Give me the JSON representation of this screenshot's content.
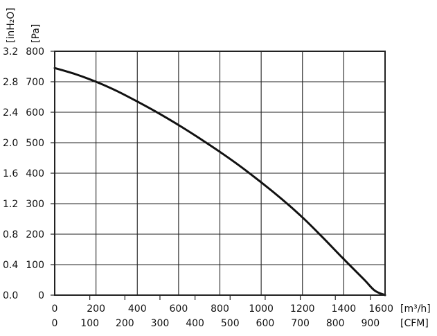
{
  "chart_data": {
    "type": "line",
    "title": "",
    "x_axis_primary": {
      "unit_label": "[m³/h]",
      "range": [
        0,
        1600
      ],
      "ticks": [
        0,
        200,
        400,
        600,
        800,
        1000,
        1200,
        1400,
        1600
      ]
    },
    "x_axis_secondary": {
      "unit_label": "[CFM]",
      "ticks": [
        0,
        100,
        200,
        300,
        400,
        500,
        600,
        700,
        800,
        900
      ]
    },
    "y_axis_primary": {
      "unit_label": "[Pa]",
      "range": [
        0,
        800
      ],
      "ticks": [
        0,
        100,
        200,
        300,
        400,
        500,
        600,
        700,
        800
      ]
    },
    "y_axis_secondary": {
      "unit_label": "[inH₂O]",
      "ticks": [
        "0.0",
        "0.4",
        "0.8",
        "1.2",
        "1.6",
        "2.0",
        "2.4",
        "2.8",
        "3.2"
      ]
    },
    "grid": true,
    "series": [
      {
        "x": [
          0,
          100,
          200,
          300,
          400,
          500,
          600,
          700,
          800,
          900,
          1000,
          1100,
          1200,
          1300,
          1400,
          1500,
          1550,
          1600
        ],
        "y": [
          745,
          725,
          700,
          670,
          635,
          598,
          558,
          515,
          470,
          422,
          370,
          315,
          255,
          188,
          118,
          50,
          15,
          0
        ],
        "color": "#111111"
      }
    ]
  }
}
